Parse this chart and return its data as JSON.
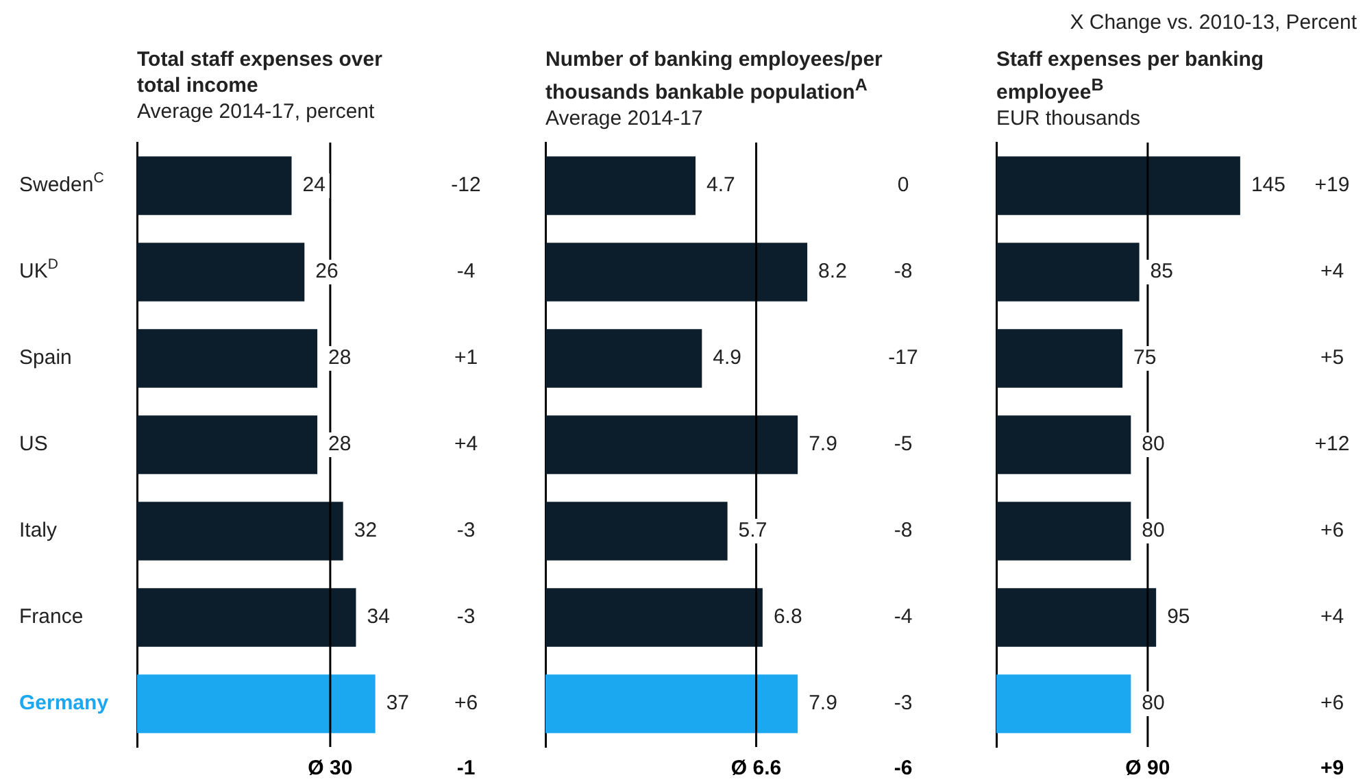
{
  "chart_data": [
    {
      "type": "bar",
      "orientation": "horizontal",
      "title": "Total staff expenses over total income",
      "subtitle": "Average 2014-17, percent",
      "categories": [
        "Sweden$^{C}$",
        "UK$^{D}$",
        "Spain",
        "US",
        "Italy",
        "France",
        "Germany"
      ],
      "values": [
        24,
        26,
        28,
        28,
        32,
        34,
        37
      ],
      "colors": [
        "#0c1e2b",
        "#0c1e2b",
        "#0c1e2b",
        "#0c1e2b",
        "#0c1e2b",
        "#0c1e2b",
        "#1ba8f0"
      ],
      "data_labels": true,
      "tick_labels": "y",
      "ref_lines": [
        {
          "axis": "x",
          "value": 30,
          "label": "Ø 30",
          "color": "#000000"
        }
      ],
      "annotations": [
        "-12",
        "-4",
        "+1",
        "+4",
        "-3",
        "-3",
        "+6",
        "-1"
      ]
    },
    {
      "type": "bar",
      "orientation": "horizontal",
      "title": "Number of banking employees/per thousands bankable population$^{A}$",
      "subtitle": "Average 2014-17",
      "categories": [
        null,
        null,
        null,
        null,
        null,
        null,
        null
      ],
      "values": [
        4.7,
        8.2,
        4.9,
        7.9,
        5.7,
        6.8,
        7.9
      ],
      "colors": [
        "#0c1e2b",
        "#0c1e2b",
        "#0c1e2b",
        "#0c1e2b",
        "#0c1e2b",
        "#0c1e2b",
        "#1ba8f0"
      ],
      "data_labels": true,
      "tick_labels": false,
      "ref_lines": [
        {
          "axis": "x",
          "value": 6.6,
          "label": "Ø 6.6",
          "color": "#000000"
        }
      ],
      "annotations": [
        "0",
        "-8",
        "-17",
        "-5",
        "-8",
        "-4",
        "-3",
        "-6"
      ]
    },
    {
      "type": "bar",
      "orientation": "horizontal",
      "title": "Staff expenses per banking employee$^{B}$",
      "subtitle": "EUR thousands",
      "legend_title": "X  Change vs. 2010-13, Percent",
      "categories": [
        null,
        null,
        null,
        null,
        null,
        null,
        null
      ],
      "values": [
        145,
        85,
        75,
        80,
        80,
        95,
        80
      ],
      "colors": [
        "#0c1e2b",
        "#0c1e2b",
        "#0c1e2b",
        "#0c1e2b",
        "#0c1e2b",
        "#0c1e2b",
        "#1ba8f0"
      ],
      "data_labels": true,
      "tick_labels": false,
      "ref_lines": [
        {
          "axis": "x",
          "value": 90,
          "label": "Ø 90",
          "color": "#000000"
        }
      ],
      "annotations": [
        "+19",
        "+4",
        "+5",
        "+12",
        "+6",
        "+4",
        "+6",
        "+9"
      ]
    }
  ]
}
